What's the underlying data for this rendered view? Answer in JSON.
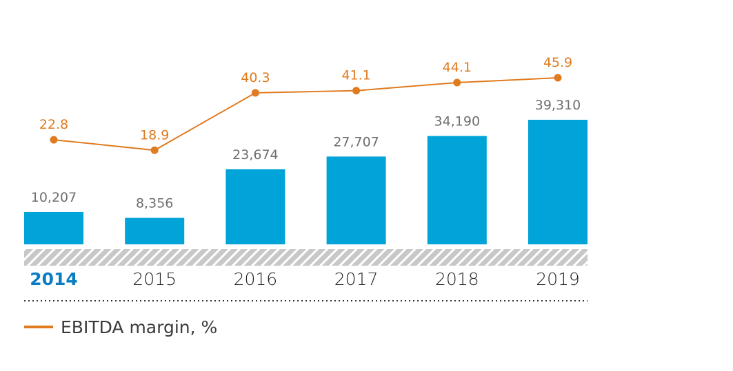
{
  "chart_data": {
    "type": "bar",
    "categories": [
      "2014",
      "2015",
      "2016",
      "2017",
      "2018",
      "2019"
    ],
    "highlighted_category": "2014",
    "series": [
      {
        "name": "EBITDA",
        "type": "bar",
        "values": [
          10207,
          8356,
          23674,
          27707,
          34190,
          39310
        ],
        "labels": [
          "10,207",
          "8,356",
          "23,674",
          "27,707",
          "34,190",
          "39,310"
        ],
        "color": "#00a4d8"
      },
      {
        "name": "EBITDA margin, %",
        "type": "line",
        "values": [
          22.8,
          18.9,
          40.3,
          41.1,
          44.1,
          45.9
        ],
        "labels": [
          "22.8",
          "18.9",
          "40.3",
          "41.1",
          "44.1",
          "45.9"
        ],
        "color": "#e07b20"
      }
    ],
    "legend": {
      "label": "EBITDA margin, %",
      "placement": "bottom-left"
    },
    "colors": {
      "bar": "#00a4d8",
      "line": "#e07b20",
      "highlight_year": "#0a7cc1",
      "bar_label": "#6d6e71"
    }
  }
}
